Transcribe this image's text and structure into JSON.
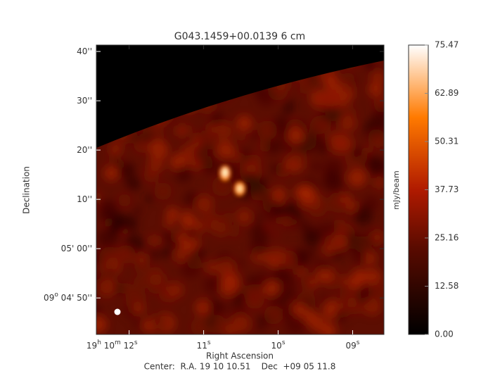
{
  "chart_data": {
    "type": "image",
    "title": "G043.1459+00.0139 6 cm",
    "x_label": "Right Ascension",
    "y_label": "Declination",
    "colorbar_label": "mJy/beam",
    "footer": "Center:  R.A. 19 10 10.51    Dec  +09 05 11.8",
    "xlim": [
      12.44,
      8.58
    ],
    "xticks": [
      {
        "value": 12,
        "label": "19h 10m 12s"
      },
      {
        "value": 11,
        "label": "11s"
      },
      {
        "value": 10,
        "label": "10s"
      },
      {
        "value": 9,
        "label": "09s"
      }
    ],
    "ylim": [
      -17.4,
      41.3
    ],
    "yticks": [
      {
        "value": 40,
        "label": "40''"
      },
      {
        "value": 30,
        "label": "30''"
      },
      {
        "value": 20,
        "label": "20''"
      },
      {
        "value": 10,
        "label": "10''"
      },
      {
        "value": 0,
        "label": "05' 00''"
      },
      {
        "value": -10,
        "label": "09o 04' 50''"
      }
    ],
    "clim": [
      0,
      75.47
    ],
    "cticks": [
      {
        "value": 0,
        "label": "0.00"
      },
      {
        "value": 12.58,
        "label": "12.58"
      },
      {
        "value": 25.16,
        "label": "25.16"
      },
      {
        "value": 37.73,
        "label": "37.73"
      },
      {
        "value": 50.31,
        "label": "50.31"
      },
      {
        "value": 62.89,
        "label": "62.89"
      },
      {
        "value": 75.47,
        "label": "75.47"
      }
    ]
  }
}
